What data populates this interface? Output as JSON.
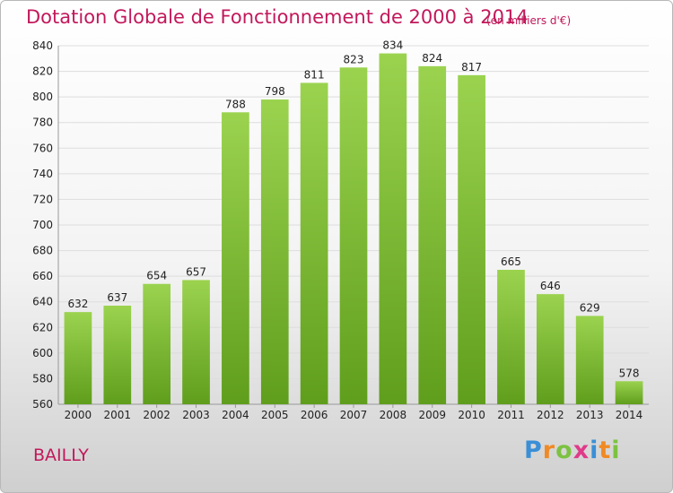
{
  "header": {
    "title": "Dotation Globale de Fonctionnement de 2000 à 2014",
    "unit": "(en milliers d'€)"
  },
  "commune": "BAILLY",
  "logo": {
    "text": "Proxiti",
    "letters": [
      {
        "ch": "P",
        "color": "#3a8fd6"
      },
      {
        "ch": "r",
        "color": "#f08a24"
      },
      {
        "ch": "o",
        "color": "#7cc242"
      },
      {
        "ch": "x",
        "color": "#e03a8a"
      },
      {
        "ch": "i",
        "color": "#3a8fd6"
      },
      {
        "ch": "t",
        "color": "#f08a24"
      },
      {
        "ch": "i",
        "color": "#7cc242"
      }
    ]
  },
  "colors": {
    "title": "#c2185b",
    "bar_top": "#9bd34f",
    "bar_bottom": "#5f9e1c",
    "grid": "#dddddd",
    "axis_text": "#222222"
  },
  "chart_data": {
    "type": "bar",
    "categories": [
      "2000",
      "2001",
      "2002",
      "2003",
      "2004",
      "2005",
      "2006",
      "2007",
      "2008",
      "2009",
      "2010",
      "2011",
      "2012",
      "2013",
      "2014"
    ],
    "values": [
      632,
      637,
      654,
      657,
      788,
      798,
      811,
      823,
      834,
      824,
      817,
      665,
      646,
      629,
      578
    ],
    "ylim": [
      560,
      840
    ],
    "yticks": [
      560,
      580,
      600,
      620,
      640,
      660,
      680,
      700,
      720,
      740,
      760,
      780,
      800,
      820,
      840
    ],
    "grid": true,
    "data_labels": true
  }
}
